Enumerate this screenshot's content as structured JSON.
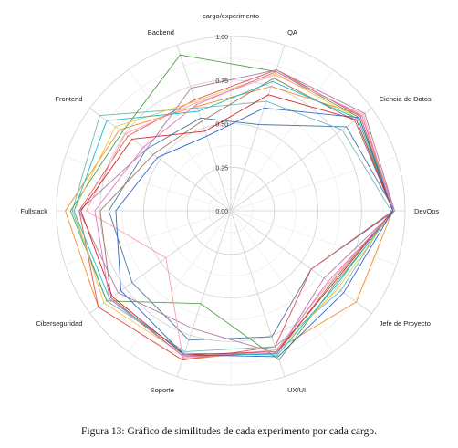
{
  "caption": "Figura 13: Gráfico de similitudes de cada experimento por cada cargo.",
  "chart_data": {
    "type": "radar",
    "title": "cargo/experimento",
    "axes": [
      "QA",
      "Ciencia de Datos",
      "DevOps",
      "Jefe de Proyecto",
      "UX/UI",
      "Soporte",
      "Ciberseguridad",
      "Fullstack",
      "Frontend",
      "Backend"
    ],
    "ticks": [
      "0.00",
      "0.25",
      "0.50",
      "0.75",
      "1.00"
    ],
    "rlim": [
      0,
      1
    ],
    "grid": true,
    "legend": "none",
    "series": [
      {
        "color": "#4e79a7",
        "values": [
          0.52,
          0.82,
          0.94,
          0.57,
          0.76,
          0.78,
          0.7,
          0.7,
          0.6,
          0.56
        ]
      },
      {
        "color": "#f28e2b",
        "values": [
          0.75,
          0.93,
          0.93,
          0.89,
          0.84,
          0.9,
          0.94,
          0.95,
          0.79,
          0.63
        ]
      },
      {
        "color": "#e15759",
        "values": [
          0.85,
          0.92,
          0.93,
          0.57,
          0.82,
          0.9,
          0.94,
          0.87,
          0.73,
          0.67
        ]
      },
      {
        "color": "#76b7b2",
        "values": [
          0.66,
          0.79,
          0.92,
          0.78,
          0.82,
          0.85,
          0.88,
          0.91,
          0.93,
          0.62
        ]
      },
      {
        "color": "#59a14f",
        "values": [
          0.84,
          0.91,
          0.94,
          0.73,
          0.9,
          0.56,
          0.88,
          0.92,
          0.77,
          0.94
        ]
      },
      {
        "color": "#edc948",
        "values": [
          0.83,
          0.9,
          0.93,
          0.76,
          0.85,
          0.87,
          0.9,
          0.9,
          0.82,
          0.66
        ]
      },
      {
        "color": "#b07aa1",
        "values": [
          0.85,
          0.95,
          0.94,
          0.66,
          0.86,
          0.71,
          0.8,
          0.87,
          0.6,
          0.74
        ]
      },
      {
        "color": "#ff9da7",
        "values": [
          0.82,
          0.94,
          0.93,
          0.7,
          0.84,
          0.89,
          0.46,
          0.83,
          0.75,
          0.65
        ]
      },
      {
        "color": "#9c755f",
        "values": [
          0.8,
          0.88,
          0.93,
          0.71,
          0.86,
          0.88,
          0.85,
          0.75,
          0.55,
          0.54
        ]
      },
      {
        "color": "#17becf",
        "values": [
          0.78,
          0.9,
          0.93,
          0.74,
          0.87,
          0.86,
          0.86,
          0.9,
          0.88,
          0.6
        ]
      },
      {
        "color": "#d62728",
        "values": [
          0.7,
          0.89,
          0.93,
          0.72,
          0.85,
          0.87,
          0.84,
          0.86,
          0.7,
          0.48
        ]
      },
      {
        "color": "#e377c2",
        "values": [
          0.84,
          0.93,
          0.94,
          0.69,
          0.85,
          0.88,
          0.86,
          0.78,
          0.62,
          0.64
        ]
      },
      {
        "color": "#3366cc",
        "values": [
          0.62,
          0.91,
          0.93,
          0.8,
          0.88,
          0.87,
          0.78,
          0.66,
          0.52,
          0.45
        ]
      }
    ]
  }
}
